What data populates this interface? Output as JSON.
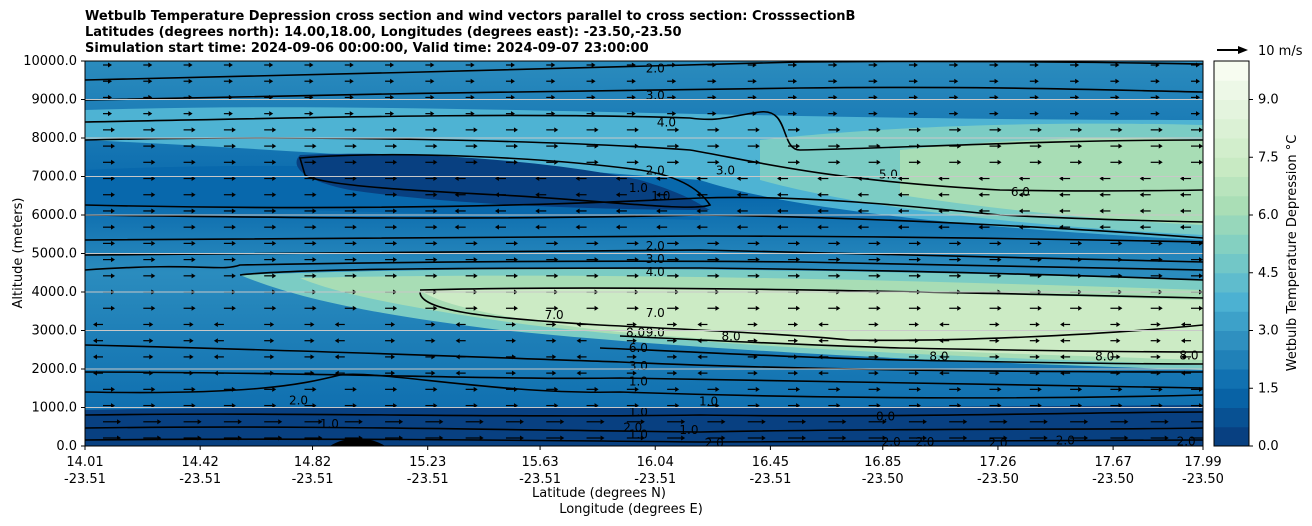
{
  "title_lines": [
    "Wetbulb Temperature Depression cross section and wind vectors parallel to cross section: CrosssectionB",
    "Latitudes (degrees north): 14.00,18.00, Longitudes (degrees east): -23.50,-23.50",
    "Simulation start time: 2024-09-06 00:00:00, Valid time: 2024-09-07 23:00:00"
  ],
  "chart_data": {
    "type": "heatmap",
    "ylabel": "Altitude (meters)",
    "xlabel_lines": [
      "Latitude (degrees N)",
      "Longitude (degrees E)"
    ],
    "ylim": [
      0,
      10000
    ],
    "y_ticks": [
      "0.0",
      "1000.0",
      "2000.0",
      "3000.0",
      "4000.0",
      "5000.0",
      "6000.0",
      "7000.0",
      "8000.0",
      "9000.0",
      "10000.0"
    ],
    "y_tick_values": [
      0,
      1000,
      2000,
      3000,
      4000,
      5000,
      6000,
      7000,
      8000,
      9000,
      10000
    ],
    "x_ticks": [
      {
        "lat": "14.01",
        "lon": "-23.51",
        "value": 14.01
      },
      {
        "lat": "14.42",
        "lon": "-23.51",
        "value": 14.42
      },
      {
        "lat": "14.82",
        "lon": "-23.51",
        "value": 14.82
      },
      {
        "lat": "15.23",
        "lon": "-23.51",
        "value": 15.23
      },
      {
        "lat": "15.63",
        "lon": "-23.51",
        "value": 15.63
      },
      {
        "lat": "16.04",
        "lon": "-23.51",
        "value": 16.04
      },
      {
        "lat": "16.45",
        "lon": "-23.51",
        "value": 16.45
      },
      {
        "lat": "16.85",
        "lon": "-23.50",
        "value": 16.85
      },
      {
        "lat": "17.26",
        "lon": "-23.50",
        "value": 17.26
      },
      {
        "lat": "17.67",
        "lon": "-23.50",
        "value": 17.67
      },
      {
        "lat": "17.99",
        "lon": "-23.50",
        "value": 17.99
      }
    ],
    "xlim": [
      14.01,
      17.99
    ],
    "grid": "horizontal",
    "colorbar": {
      "label": "Wetbulb Temperature Depression °C",
      "ticks": [
        "0.0",
        "1.5",
        "3.0",
        "4.5",
        "6.0",
        "7.5",
        "9.0"
      ],
      "tick_values": [
        0,
        1.5,
        3,
        4.5,
        6,
        7.5,
        9
      ],
      "range": [
        0,
        10
      ],
      "levels": 20,
      "colormap": [
        "#084081",
        "#0868ac",
        "#2b8cbe",
        "#4eb3d3",
        "#7bccc4",
        "#a8ddb5",
        "#ccebc5",
        "#e0f3db",
        "#f7fcf0"
      ]
    },
    "wind_reference": {
      "label": "10 m/s",
      "speed": 10
    },
    "contour_labels": [
      {
        "text": "2.0",
        "x": 16.04,
        "y": 9800
      },
      {
        "text": "3.0",
        "x": 16.04,
        "y": 9100
      },
      {
        "text": "4.0",
        "x": 16.08,
        "y": 8400
      },
      {
        "text": "2.0",
        "x": 16.04,
        "y": 7150
      },
      {
        "text": "3.0",
        "x": 16.29,
        "y": 7150
      },
      {
        "text": "5.0",
        "x": 16.87,
        "y": 7050
      },
      {
        "text": "6.0",
        "x": 17.34,
        "y": 6600
      },
      {
        "text": "1.0",
        "x": 15.98,
        "y": 6700
      },
      {
        "text": "1.0",
        "x": 16.06,
        "y": 6500
      },
      {
        "text": "2.0",
        "x": 16.04,
        "y": 5200
      },
      {
        "text": "3.0",
        "x": 16.04,
        "y": 4860
      },
      {
        "text": "4.0",
        "x": 16.04,
        "y": 4520
      },
      {
        "text": "7.0",
        "x": 16.04,
        "y": 3450
      },
      {
        "text": "7.0",
        "x": 15.68,
        "y": 3400
      },
      {
        "text": "8.0",
        "x": 15.97,
        "y": 2950
      },
      {
        "text": "9.0",
        "x": 16.04,
        "y": 2950
      },
      {
        "text": "8.0",
        "x": 16.31,
        "y": 2850
      },
      {
        "text": "6.0",
        "x": 15.98,
        "y": 2540
      },
      {
        "text": "3.0",
        "x": 15.98,
        "y": 2080
      },
      {
        "text": "1.0",
        "x": 15.98,
        "y": 1680
      },
      {
        "text": "8.0",
        "x": 17.05,
        "y": 2330
      },
      {
        "text": "8.0",
        "x": 17.64,
        "y": 2330
      },
      {
        "text": "8.0",
        "x": 17.94,
        "y": 2350
      },
      {
        "text": "2.0",
        "x": 14.77,
        "y": 1180
      },
      {
        "text": "1.0",
        "x": 14.88,
        "y": 570
      },
      {
        "text": "1.0",
        "x": 16.23,
        "y": 1150
      },
      {
        "text": "1.0",
        "x": 15.98,
        "y": 880
      },
      {
        "text": "1.0",
        "x": 15.98,
        "y": 300
      },
      {
        "text": "2.0",
        "x": 15.96,
        "y": 480
      },
      {
        "text": "1.0",
        "x": 16.16,
        "y": 420
      },
      {
        "text": "2.0",
        "x": 16.25,
        "y": 80
      },
      {
        "text": "0.0",
        "x": 16.86,
        "y": 770
      },
      {
        "text": "2.0",
        "x": 16.88,
        "y": 100
      },
      {
        "text": "2.0",
        "x": 17.0,
        "y": 100
      },
      {
        "text": "2.0",
        "x": 17.26,
        "y": 80
      },
      {
        "text": "2.0",
        "x": 17.5,
        "y": 140
      },
      {
        "text": "2.0",
        "x": 17.93,
        "y": 120
      }
    ]
  }
}
